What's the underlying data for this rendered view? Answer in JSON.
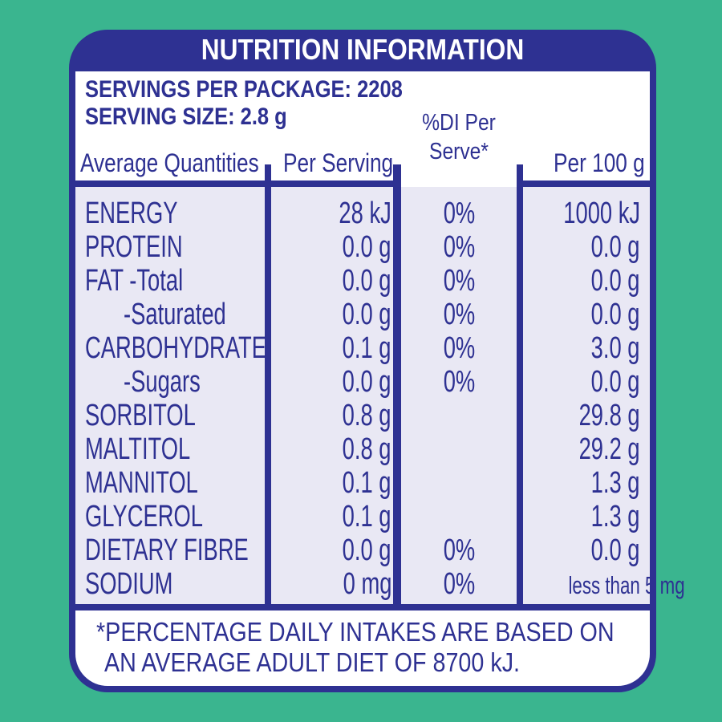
{
  "label": {
    "title": "NUTRITION INFORMATION",
    "servings_per_package": "SERVINGS PER PACKAGE: 2208",
    "serving_size": "SERVING SIZE: 2.8 g",
    "headers": {
      "average_quantities": "Average Quantities",
      "per_serving": "Per Serving",
      "di_line1": "%DI Per",
      "di_line2": "Serve*",
      "per_100g": "Per 100 g"
    },
    "rows": [
      {
        "name": "ENERGY",
        "per_serving": "28 kJ",
        "di": "0%",
        "per_100g": "1000 kJ"
      },
      {
        "name": "PROTEIN",
        "per_serving": "0.0 g",
        "di": "0%",
        "per_100g": "0.0 g"
      },
      {
        "name": "FAT -Total",
        "per_serving": "0.0 g",
        "di": "0%",
        "per_100g": "0.0 g"
      },
      {
        "name": "-Saturated",
        "per_serving": "0.0 g",
        "di": "0%",
        "per_100g": "0.0 g"
      },
      {
        "name": "CARBOHYDRATE",
        "per_serving": "0.1 g",
        "di": "0%",
        "per_100g": "3.0 g"
      },
      {
        "name": "-Sugars",
        "per_serving": "0.0 g",
        "di": "0%",
        "per_100g": "0.0 g"
      },
      {
        "name": "SORBITOL",
        "per_serving": "0.8 g",
        "di": "",
        "per_100g": "29.8 g"
      },
      {
        "name": "MALTITOL",
        "per_serving": "0.8 g",
        "di": "",
        "per_100g": "29.2 g"
      },
      {
        "name": "MANNITOL",
        "per_serving": "0.1 g",
        "di": "",
        "per_100g": "1.3 g"
      },
      {
        "name": "GLYCEROL",
        "per_serving": "0.1 g",
        "di": "",
        "per_100g": "1.3 g"
      },
      {
        "name": "DIETARY FIBRE",
        "per_serving": "0.0 g",
        "di": "0%",
        "per_100g": "0.0 g"
      },
      {
        "name": "SODIUM",
        "per_serving": "0 mg",
        "di": "0%",
        "per_100g": "less than 5 mg"
      }
    ],
    "footnote_line1": "*PERCENTAGE DAILY INTAKES ARE BASED ON",
    "footnote_line2": "AN AVERAGE ADULT DIET OF 8700 kJ."
  },
  "colors": {
    "background": "#3ab58f",
    "brand_blue": "#2e3192",
    "panel_white": "#ffffff",
    "column_tint": "#e9e8f4"
  }
}
